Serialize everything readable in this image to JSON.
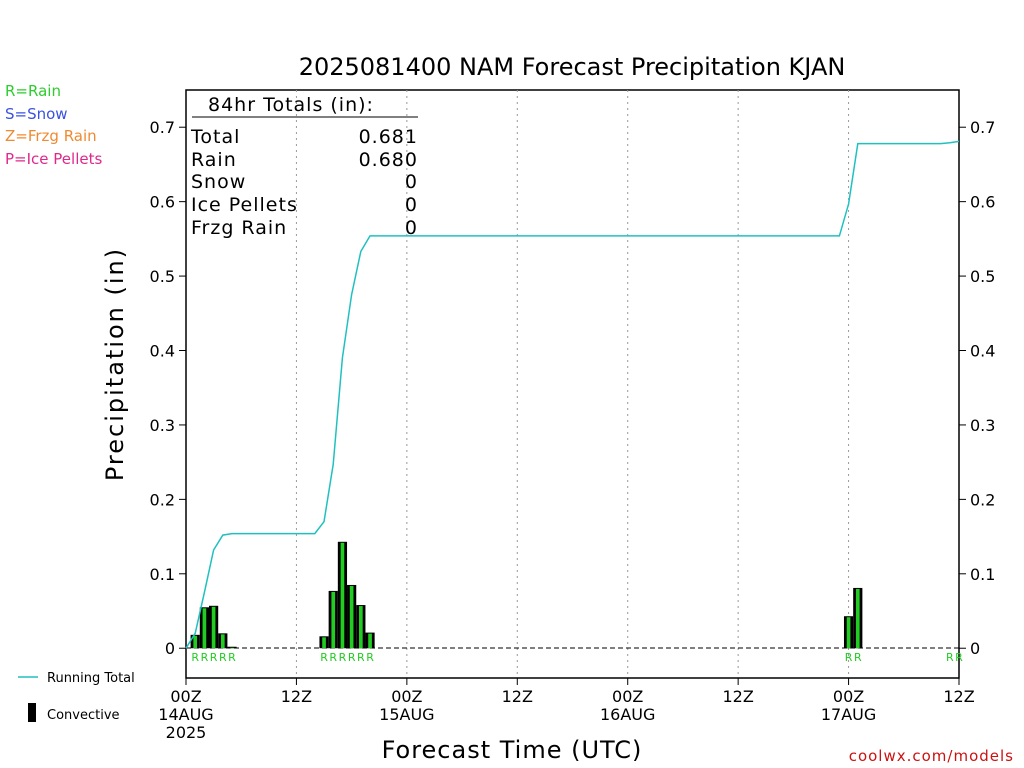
{
  "title": "2025081400 NAM Forecast Precipitation KJAN",
  "credit": "coolwx.com/models",
  "legend_ptype": [
    {
      "label": "R=Rain",
      "color": "#2ecc2e"
    },
    {
      "label": "S=Snow",
      "color": "#3a52e0"
    },
    {
      "label": "Z=Frzg Rain",
      "color": "#f08a30"
    },
    {
      "label": "P=Ice Pellets",
      "color": "#e0288c"
    }
  ],
  "legend_series": {
    "running_total": "Running Total",
    "convective": "Convective"
  },
  "totals": {
    "header": "84hr Totals (in):",
    "rows": [
      {
        "label": "Total",
        "value": "0.681"
      },
      {
        "label": "Rain",
        "value": "0.680"
      },
      {
        "label": "Snow",
        "value": "0"
      },
      {
        "label": "Ice Pellets",
        "value": "0"
      },
      {
        "label": "Frzg Rain",
        "value": "0"
      }
    ]
  },
  "colors": {
    "running_total": "#20c0c0",
    "bar_outer": "#000000",
    "bar_inner": "#22cc22",
    "ptype_rain": "#22cc22",
    "grid": "#999999"
  },
  "chart_data": {
    "type": "bar",
    "xlabel": "Forecast Time (UTC)",
    "ylabel": "Precipitation (in)",
    "xlim": [
      0,
      84
    ],
    "ylim": [
      -0.04,
      0.75
    ],
    "y_ticks": [
      0,
      0.1,
      0.2,
      0.3,
      0.4,
      0.5,
      0.6,
      0.7
    ],
    "y_tick_labels": [
      "0",
      "0.1",
      "0.2",
      "0.3",
      "0.4",
      "0.5",
      "0.6",
      "0.7"
    ],
    "x_ticks": [
      {
        "hour": 0,
        "lines": [
          "00Z",
          "14AUG",
          "2025"
        ]
      },
      {
        "hour": 12,
        "lines": [
          "12Z"
        ]
      },
      {
        "hour": 24,
        "lines": [
          "00Z",
          "15AUG"
        ]
      },
      {
        "hour": 36,
        "lines": [
          "12Z"
        ]
      },
      {
        "hour": 48,
        "lines": [
          "00Z",
          "16AUG"
        ]
      },
      {
        "hour": 60,
        "lines": [
          "12Z"
        ]
      },
      {
        "hour": 72,
        "lines": [
          "00Z",
          "17AUG"
        ]
      },
      {
        "hour": 84,
        "lines": [
          "12Z"
        ]
      }
    ],
    "grid_x": [
      12,
      24,
      36,
      48,
      60,
      72
    ],
    "bars": [
      {
        "hour": 1,
        "value": 0.018
      },
      {
        "hour": 2,
        "value": 0.055
      },
      {
        "hour": 3,
        "value": 0.057
      },
      {
        "hour": 4,
        "value": 0.02
      },
      {
        "hour": 5,
        "value": 0.002
      },
      {
        "hour": 15,
        "value": 0.016
      },
      {
        "hour": 16,
        "value": 0.077
      },
      {
        "hour": 17,
        "value": 0.143
      },
      {
        "hour": 18,
        "value": 0.085
      },
      {
        "hour": 19,
        "value": 0.058
      },
      {
        "hour": 20,
        "value": 0.021
      },
      {
        "hour": 72,
        "value": 0.043
      },
      {
        "hour": 73,
        "value": 0.081
      }
    ],
    "running_total": {
      "name": "Running Total",
      "x": [
        0,
        1,
        2,
        3,
        4,
        5,
        6,
        7,
        8,
        9,
        10,
        11,
        12,
        13,
        14,
        15,
        16,
        17,
        18,
        19,
        20,
        21,
        22,
        23,
        24,
        36,
        48,
        60,
        71,
        72,
        73,
        74,
        75,
        76,
        77,
        78,
        79,
        80,
        81,
        82,
        83,
        84
      ],
      "y": [
        0,
        0.02,
        0.075,
        0.132,
        0.152,
        0.154,
        0.154,
        0.154,
        0.154,
        0.154,
        0.154,
        0.154,
        0.154,
        0.154,
        0.154,
        0.17,
        0.247,
        0.39,
        0.475,
        0.533,
        0.554,
        0.554,
        0.554,
        0.554,
        0.554,
        0.554,
        0.554,
        0.554,
        0.554,
        0.597,
        0.678,
        0.678,
        0.678,
        0.678,
        0.678,
        0.678,
        0.678,
        0.678,
        0.678,
        0.678,
        0.679,
        0.681
      ]
    },
    "ptype_markers": [
      {
        "hour": 1,
        "code": "R"
      },
      {
        "hour": 2,
        "code": "R"
      },
      {
        "hour": 3,
        "code": "R"
      },
      {
        "hour": 4,
        "code": "R"
      },
      {
        "hour": 5,
        "code": "R"
      },
      {
        "hour": 15,
        "code": "R"
      },
      {
        "hour": 16,
        "code": "R"
      },
      {
        "hour": 17,
        "code": "R"
      },
      {
        "hour": 18,
        "code": "R"
      },
      {
        "hour": 19,
        "code": "R"
      },
      {
        "hour": 20,
        "code": "R"
      },
      {
        "hour": 72,
        "code": "R"
      },
      {
        "hour": 73,
        "code": "R"
      },
      {
        "hour": 83,
        "code": "R"
      },
      {
        "hour": 84,
        "code": "R"
      }
    ]
  }
}
